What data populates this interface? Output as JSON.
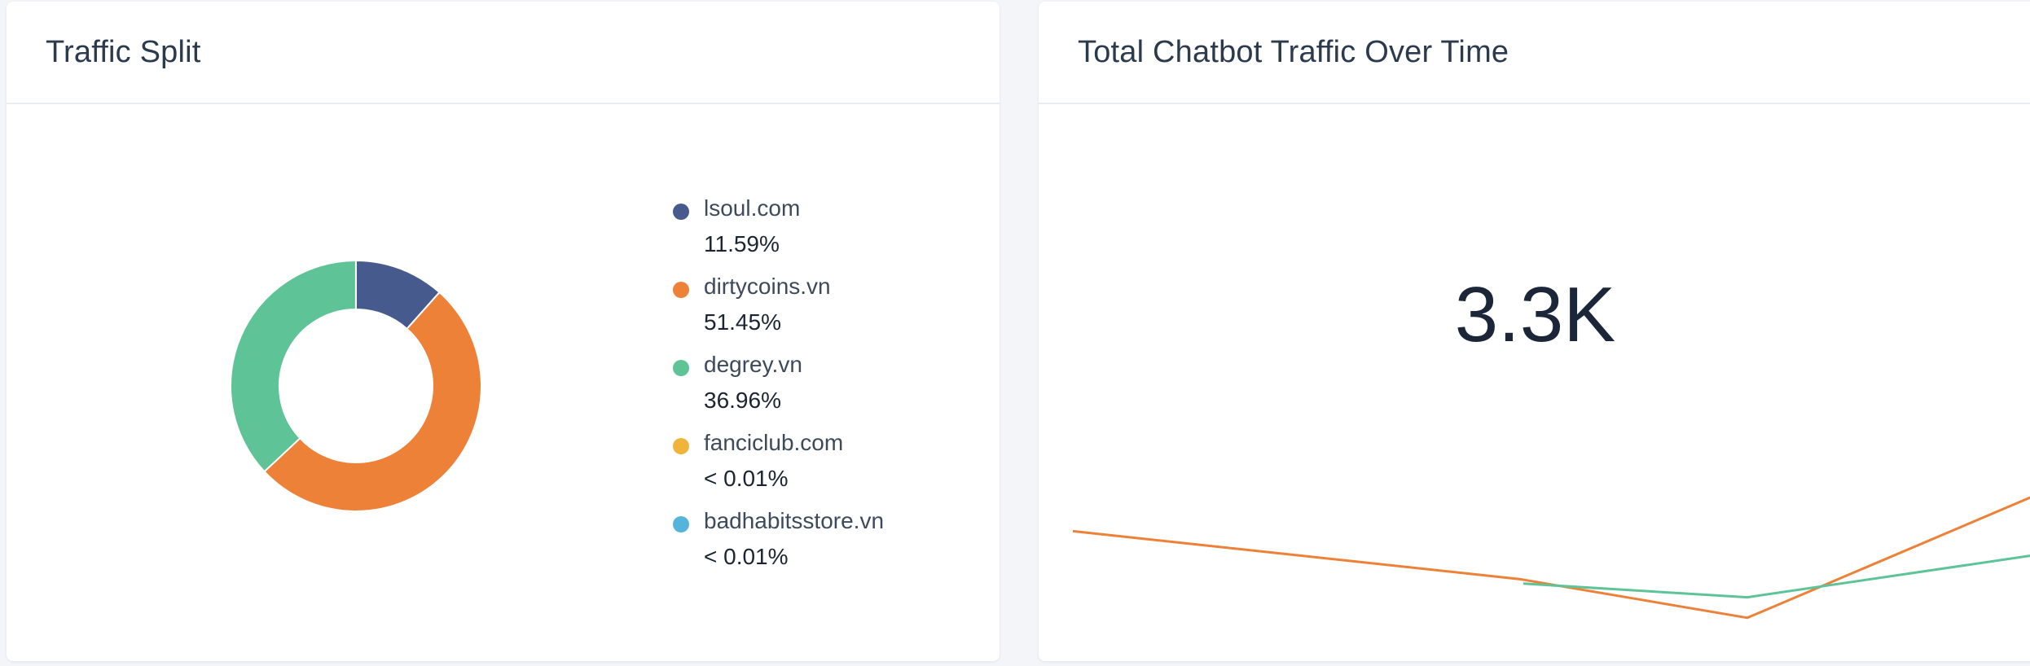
{
  "traffic_split": {
    "title": "Traffic Split",
    "legend": [
      {
        "name": "lsoul.com",
        "pct": "11.59%",
        "color": "#475a8e"
      },
      {
        "name": "dirtycoins.vn",
        "pct": "51.45%",
        "color": "#ec8137"
      },
      {
        "name": "degrey.vn",
        "pct": "36.96%",
        "color": "#5ec498"
      },
      {
        "name": "fanciclub.com",
        "pct": "< 0.01%",
        "color": "#f0b43b"
      },
      {
        "name": "badhabitsstore.vn",
        "pct": "< 0.01%",
        "color": "#55b4d9"
      }
    ]
  },
  "chatbot_traffic": {
    "title": "Total Chatbot Traffic Over Time",
    "big_number": "3.3K"
  },
  "chart_data": [
    {
      "type": "pie",
      "title": "Traffic Split",
      "labels": [
        "lsoul.com",
        "dirtycoins.vn",
        "degrey.vn",
        "fanciclub.com",
        "badhabitsstore.vn"
      ],
      "values": [
        11.59,
        51.45,
        36.96,
        0.005,
        0.005
      ],
      "colors": [
        "#475a8e",
        "#ec8137",
        "#5ec498",
        "#f0b43b",
        "#55b4d9"
      ],
      "donut": true,
      "legend": "right"
    },
    {
      "type": "line",
      "title": "Total Chatbot Traffic Over Time",
      "x": [
        0,
        1,
        2,
        3
      ],
      "series": [
        {
          "values": [
            520,
            310,
            140,
            690
          ],
          "color": "#ec8137"
        },
        {
          "values": [
            null,
            290,
            230,
            420
          ],
          "color": "#5ec498"
        }
      ],
      "ylim": [
        0,
        3300
      ],
      "grid": false
    }
  ]
}
